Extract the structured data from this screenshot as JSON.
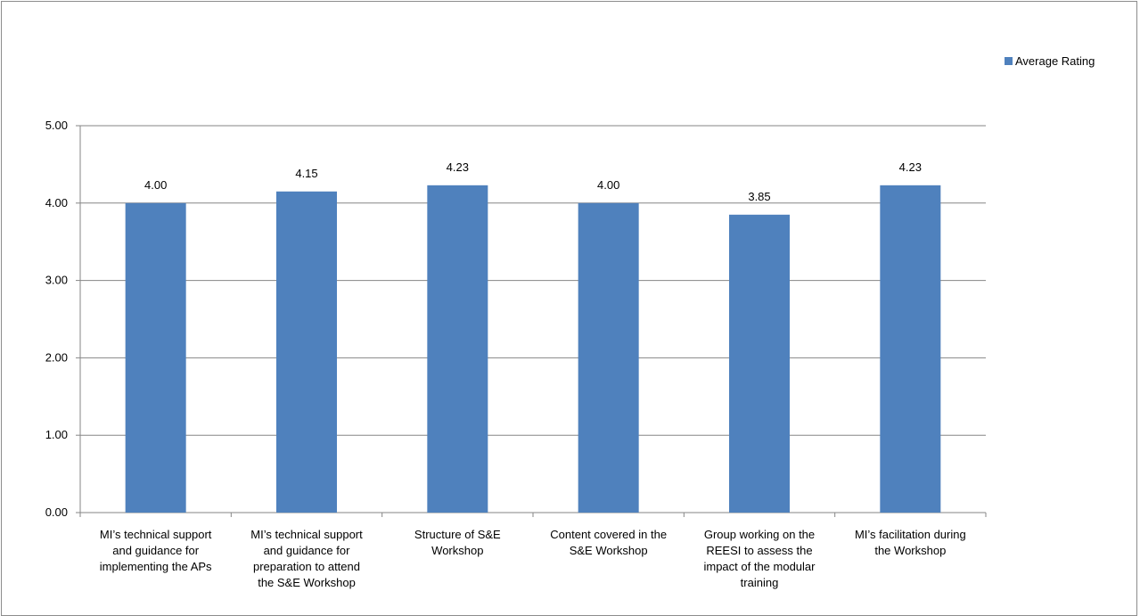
{
  "chart_data": {
    "type": "bar",
    "categories": [
      "MI’s technical support and guidance for implementing the APs",
      "MI’s technical support and guidance for preparation to attend the S&E Workshop",
      "Structure of S&E Workshop",
      "Content covered in the S&E Workshop",
      "Group working on the REESI to assess the impact of the modular training",
      "MI’s facilitation during the Workshop"
    ],
    "category_lines": [
      [
        "MI’s technical support",
        "and guidance for",
        "implementing the APs"
      ],
      [
        "MI’s technical support",
        "and guidance for",
        "preparation to attend",
        "the S&E Workshop"
      ],
      [
        "Structure of S&E",
        "Workshop"
      ],
      [
        "Content covered in the",
        "S&E Workshop"
      ],
      [
        "Group working on the",
        "REESI to assess the",
        "impact of the modular",
        "training"
      ],
      [
        "MI’s facilitation during",
        "the Workshop"
      ]
    ],
    "series": [
      {
        "name": "Average Rating",
        "values": [
          4.0,
          4.15,
          4.23,
          4.0,
          3.85,
          4.23
        ],
        "labels": [
          "4.00",
          "4.15",
          "4.23",
          "4.00",
          "3.85",
          "4.23"
        ],
        "color": "#4f81bd"
      }
    ],
    "ylim": [
      0,
      5
    ],
    "yticks": [
      "0.00",
      "1.00",
      "2.00",
      "3.00",
      "4.00",
      "5.00"
    ],
    "ytick_values": [
      0,
      1,
      2,
      3,
      4,
      5
    ],
    "grid": true,
    "legend_placement": "top-right",
    "title": "",
    "xlabel": "",
    "ylabel": ""
  }
}
